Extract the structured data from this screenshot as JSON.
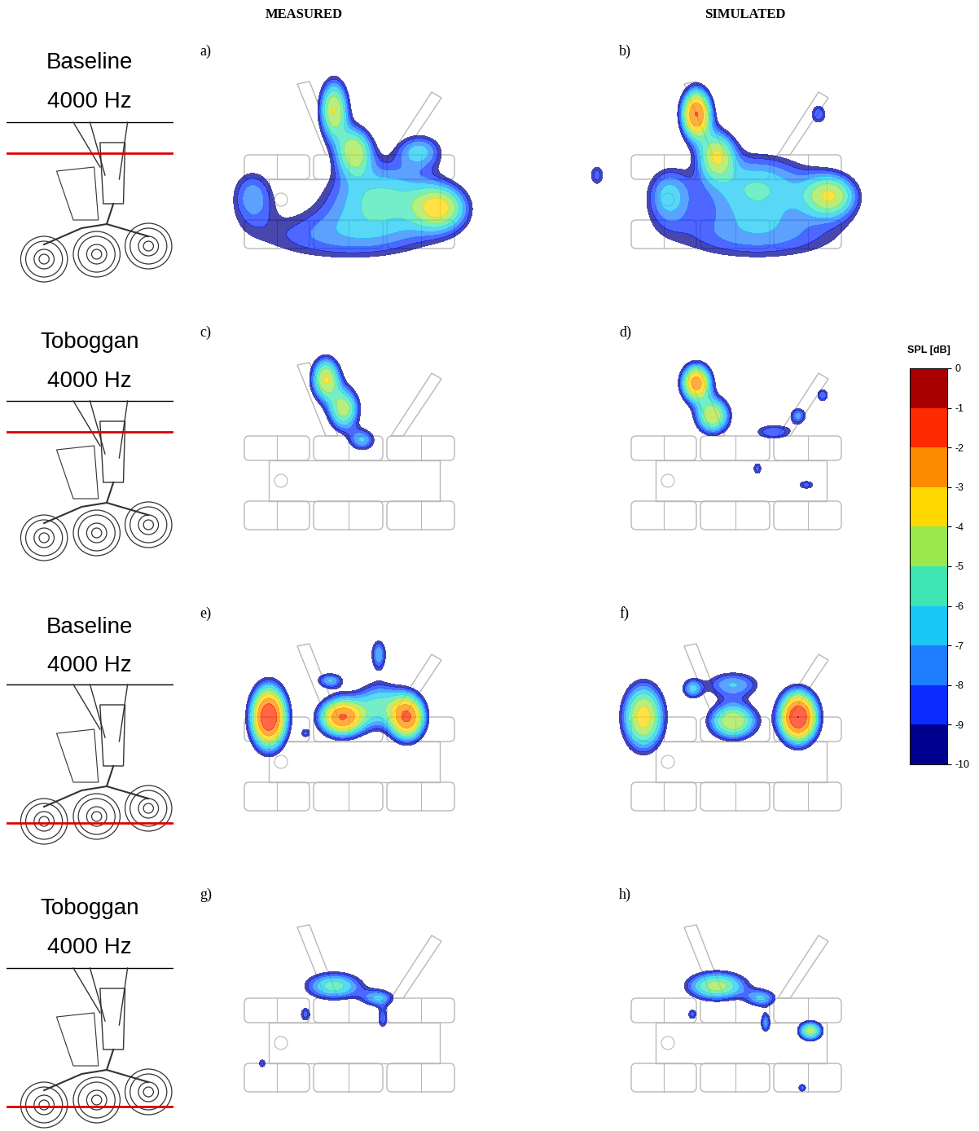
{
  "columns": [
    "MEASURED",
    "SIMULATED"
  ],
  "rows": [
    [
      "Baseline",
      "4000 Hz"
    ],
    [
      "Toboggan",
      "4000 Hz"
    ],
    [
      "Baseline",
      "4000 Hz"
    ],
    [
      "Toboggan",
      "4000 Hz"
    ]
  ],
  "colorbar": {
    "title": "SPL [dB]",
    "range": [
      -10,
      0
    ],
    "ticks": [
      0,
      -1,
      -2,
      -3,
      -4,
      -5,
      -6,
      -7,
      -8,
      -9,
      -10
    ],
    "colors": [
      "#00008f",
      "#0a2cff",
      "#1f7dff",
      "#19c8f5",
      "#3ee6b4",
      "#9be84e",
      "#ffd800",
      "#ff8c00",
      "#ff2a00",
      "#a80000"
    ]
  },
  "chart_data": [
    {
      "type": "heatmap",
      "title": "a)",
      "sources": [
        {
          "x": 160,
          "y": 200,
          "level": -4,
          "sx": 12,
          "sy": 25
        },
        {
          "x": 185,
          "y": 150,
          "level": -4.5,
          "sx": 15,
          "sy": 20
        },
        {
          "x": 290,
          "y": 80,
          "level": -4.5,
          "sx": 22,
          "sy": 18
        },
        {
          "x": 220,
          "y": 95,
          "level": -6,
          "sx": 50,
          "sy": 30
        },
        {
          "x": 60,
          "y": 95,
          "level": -7.5,
          "sx": 20,
          "sy": 25
        },
        {
          "x": 170,
          "y": 45,
          "level": -8,
          "sx": 90,
          "sy": 25
        },
        {
          "x": 265,
          "y": 150,
          "level": -7,
          "sx": 20,
          "sy": 15
        }
      ]
    },
    {
      "type": "heatmap",
      "title": "b)",
      "sources": [
        {
          "x": 130,
          "y": 195,
          "level": -2,
          "sx": 12,
          "sy": 20
        },
        {
          "x": 155,
          "y": 145,
          "level": -4.5,
          "sx": 15,
          "sy": 20
        },
        {
          "x": 295,
          "y": 95,
          "level": -4.5,
          "sx": 22,
          "sy": 18
        },
        {
          "x": 205,
          "y": 105,
          "level": -6,
          "sx": 50,
          "sy": 30
        },
        {
          "x": 95,
          "y": 95,
          "level": -7,
          "sx": 20,
          "sy": 25
        },
        {
          "x": 205,
          "y": 45,
          "level": -8,
          "sx": 90,
          "sy": 25
        },
        {
          "x": 280,
          "y": 195,
          "level": -8,
          "sx": 8,
          "sy": 10
        },
        {
          "x": 8,
          "y": 120,
          "level": -8.5,
          "sx": 8,
          "sy": 12
        }
      ]
    },
    {
      "type": "heatmap",
      "title": "c)",
      "sources": [
        {
          "x": 150,
          "y": 215,
          "level": -4,
          "sx": 12,
          "sy": 18
        },
        {
          "x": 172,
          "y": 178,
          "level": -4.5,
          "sx": 13,
          "sy": 18
        },
        {
          "x": 195,
          "y": 140,
          "level": -7,
          "sx": 12,
          "sy": 10
        }
      ]
    },
    {
      "type": "heatmap",
      "title": "d)",
      "sources": [
        {
          "x": 130,
          "y": 210,
          "level": -2.5,
          "sx": 12,
          "sy": 15
        },
        {
          "x": 150,
          "y": 170,
          "level": -4,
          "sx": 14,
          "sy": 15
        },
        {
          "x": 225,
          "y": 150,
          "level": -8,
          "sx": 20,
          "sy": 8
        },
        {
          "x": 255,
          "y": 170,
          "level": -7.5,
          "sx": 8,
          "sy": 8
        },
        {
          "x": 285,
          "y": 195,
          "level": -8,
          "sx": 6,
          "sy": 7
        },
        {
          "x": 205,
          "y": 105,
          "level": -8.5,
          "sx": 5,
          "sy": 7
        },
        {
          "x": 265,
          "y": 85,
          "level": -8.5,
          "sx": 9,
          "sy": 5
        }
      ]
    },
    {
      "type": "heatmap",
      "title": "e)",
      "sources": [
        {
          "x": 80,
          "y": 145,
          "level": -1,
          "sx": 14,
          "sy": 24
        },
        {
          "x": 170,
          "y": 145,
          "level": -2,
          "sx": 18,
          "sy": 15
        },
        {
          "x": 250,
          "y": 145,
          "level": -2,
          "sx": 14,
          "sy": 18
        },
        {
          "x": 215,
          "y": 160,
          "level": -6,
          "sx": 20,
          "sy": 20
        },
        {
          "x": 215,
          "y": 222,
          "level": -7,
          "sx": 7,
          "sy": 14
        },
        {
          "x": 155,
          "y": 190,
          "level": -7,
          "sx": 12,
          "sy": 7
        },
        {
          "x": 125,
          "y": 125,
          "level": -9,
          "sx": 5,
          "sy": 5
        }
      ]
    },
    {
      "type": "heatmap",
      "title": "f)",
      "sources": [
        {
          "x": 65,
          "y": 145,
          "level": -3.5,
          "sx": 17,
          "sy": 27
        },
        {
          "x": 125,
          "y": 180,
          "level": -7,
          "sx": 9,
          "sy": 9
        },
        {
          "x": 175,
          "y": 140,
          "level": -4,
          "sx": 20,
          "sy": 15
        },
        {
          "x": 255,
          "y": 145,
          "level": -1,
          "sx": 15,
          "sy": 20
        },
        {
          "x": 175,
          "y": 185,
          "level": -7,
          "sx": 25,
          "sy": 12
        }
      ]
    },
    {
      "type": "heatmap",
      "title": "g)",
      "sources": [
        {
          "x": 160,
          "y": 160,
          "level": -5.5,
          "sx": 25,
          "sy": 12
        },
        {
          "x": 215,
          "y": 145,
          "level": -7,
          "sx": 15,
          "sy": 8
        },
        {
          "x": 220,
          "y": 120,
          "level": -8,
          "sx": 5,
          "sy": 10
        },
        {
          "x": 125,
          "y": 125,
          "level": -8.5,
          "sx": 6,
          "sy": 8
        },
        {
          "x": 72,
          "y": 65,
          "level": -8.5,
          "sx": 4,
          "sy": 5
        }
      ]
    },
    {
      "type": "heatmap",
      "title": "h)",
      "sources": [
        {
          "x": 155,
          "y": 160,
          "level": -4.5,
          "sx": 25,
          "sy": 12
        },
        {
          "x": 210,
          "y": 145,
          "level": -7,
          "sx": 14,
          "sy": 8
        },
        {
          "x": 215,
          "y": 115,
          "level": -7.5,
          "sx": 5,
          "sy": 10
        },
        {
          "x": 270,
          "y": 105,
          "level": -4.5,
          "sx": 10,
          "sy": 8
        },
        {
          "x": 125,
          "y": 125,
          "level": -8.5,
          "sx": 5,
          "sy": 6
        },
        {
          "x": 260,
          "y": 35,
          "level": -8.5,
          "sx": 5,
          "sy": 5
        }
      ]
    }
  ]
}
